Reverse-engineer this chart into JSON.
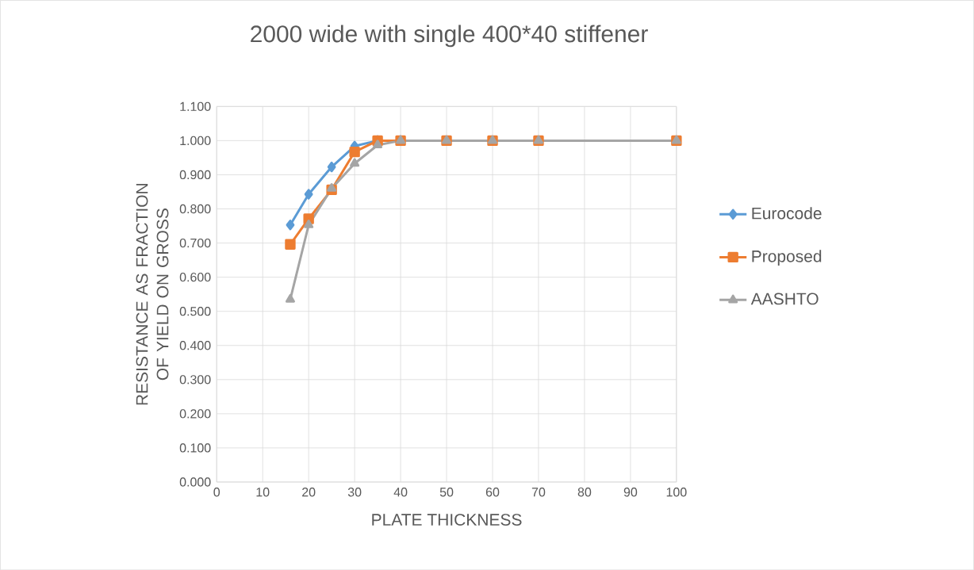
{
  "chart_data": {
    "type": "line",
    "title": "2000 wide with single 400*40 stiffener",
    "xlabel": "PLATE THICKNESS",
    "ylabel": "RESISTANCE  AS FRACTION OF YIELD ON GROSS",
    "x": [
      16,
      20,
      25,
      30,
      35,
      40,
      50,
      60,
      70,
      100
    ],
    "series": [
      {
        "name": "Eurocode",
        "color": "#5b9bd5",
        "marker": "diamond",
        "values": [
          0.753,
          0.843,
          0.923,
          0.984,
          1.0,
          1.0,
          null,
          null,
          null,
          null
        ]
      },
      {
        "name": "Proposed",
        "color": "#ed7d31",
        "marker": "square",
        "values": [
          0.696,
          0.771,
          0.856,
          0.967,
          1.0,
          1.0,
          1.0,
          1.0,
          1.0,
          1.0
        ]
      },
      {
        "name": "AASHTO",
        "color": "#a5a5a5",
        "marker": "triangle",
        "values": [
          0.535,
          0.753,
          0.86,
          0.933,
          0.987,
          1.0,
          1.0,
          1.0,
          1.0,
          1.0
        ]
      }
    ],
    "xlim": [
      0,
      100
    ],
    "xticks": [
      0,
      10,
      20,
      30,
      40,
      50,
      60,
      70,
      80,
      90,
      100
    ],
    "ylim": [
      0,
      1.1
    ],
    "yticks": [
      {
        "value": 0,
        "label": "0.000"
      },
      {
        "value": 0.1,
        "label": "0.100"
      },
      {
        "value": 0.2,
        "label": "0.200"
      },
      {
        "value": 0.3,
        "label": "0.300"
      },
      {
        "value": 0.4,
        "label": "0.400"
      },
      {
        "value": 0.5,
        "label": "0.500"
      },
      {
        "value": 0.6,
        "label": "0.600"
      },
      {
        "value": 0.7,
        "label": "0.700"
      },
      {
        "value": 0.8,
        "label": "0.800"
      },
      {
        "value": 0.9,
        "label": "0.900"
      },
      {
        "value": 1.0,
        "label": "1.000"
      },
      {
        "value": 1.1,
        "label": "1.100"
      }
    ],
    "grid": true,
    "legend": "right",
    "line_style": "solid"
  }
}
